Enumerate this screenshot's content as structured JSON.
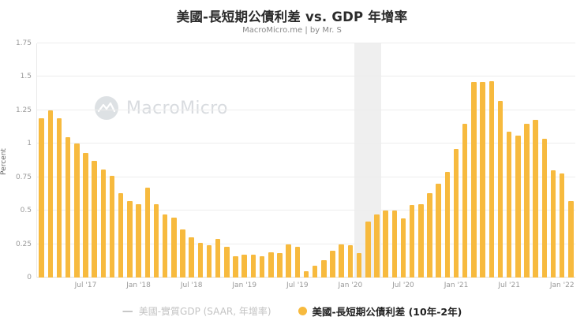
{
  "chart": {
    "title": "美國-長短期公債利差 vs. GDP 年增率",
    "subtitle": "MacroMicro.me | by Mr. S",
    "ylabel": "Percent",
    "watermark": "MacroMicro"
  },
  "legend": {
    "gdp_marker": "—",
    "gdp_label": "美國-實質GDP (SAAR, 年增率)",
    "spread_label": "美國-長短期公債利差 (10年-2年)"
  },
  "chart_data": {
    "type": "bar",
    "title": "美國-長短期公債利差 vs. GDP 年增率",
    "subtitle": "MacroMicro.me | by Mr. S",
    "xlabel": "",
    "ylabel": "Percent",
    "ylim": [
      0,
      1.75
    ],
    "y_ticks": [
      0,
      0.25,
      0.5,
      0.75,
      1,
      1.25,
      1.5,
      1.75
    ],
    "grid": true,
    "legend_position": "bottom",
    "bar_color": "#f7ba3e",
    "x": [
      "2017-02",
      "2017-03",
      "2017-04",
      "2017-05",
      "2017-06",
      "2017-07",
      "2017-08",
      "2017-09",
      "2017-10",
      "2017-11",
      "2017-12",
      "2018-01",
      "2018-02",
      "2018-03",
      "2018-04",
      "2018-05",
      "2018-06",
      "2018-07",
      "2018-08",
      "2018-09",
      "2018-10",
      "2018-11",
      "2018-12",
      "2019-01",
      "2019-02",
      "2019-03",
      "2019-04",
      "2019-05",
      "2019-06",
      "2019-07",
      "2019-08",
      "2019-09",
      "2019-10",
      "2019-11",
      "2019-12",
      "2020-01",
      "2020-02",
      "2020-03",
      "2020-04",
      "2020-05",
      "2020-06",
      "2020-07",
      "2020-08",
      "2020-09",
      "2020-10",
      "2020-11",
      "2020-12",
      "2021-01",
      "2021-02",
      "2021-03",
      "2021-04",
      "2021-05",
      "2021-06",
      "2021-07",
      "2021-08",
      "2021-09",
      "2021-10",
      "2021-11",
      "2021-12",
      "2022-01",
      "2022-02"
    ],
    "values": [
      1.19,
      1.25,
      1.19,
      1.05,
      1.0,
      0.93,
      0.87,
      0.81,
      0.76,
      0.63,
      0.57,
      0.55,
      0.67,
      0.55,
      0.47,
      0.45,
      0.36,
      0.3,
      0.26,
      0.24,
      0.29,
      0.23,
      0.16,
      0.17,
      0.17,
      0.16,
      0.19,
      0.18,
      0.25,
      0.23,
      0.05,
      0.09,
      0.13,
      0.2,
      0.25,
      0.24,
      0.18,
      0.42,
      0.47,
      0.5,
      0.5,
      0.44,
      0.54,
      0.55,
      0.63,
      0.7,
      0.79,
      0.96,
      1.15,
      1.46,
      1.46,
      1.47,
      1.32,
      1.09,
      1.06,
      1.15,
      1.18,
      1.04,
      0.8,
      0.78,
      0.57
    ],
    "x_ticks": [
      {
        "label": "Jul '17",
        "index": 5
      },
      {
        "label": "Jan '18",
        "index": 11
      },
      {
        "label": "Jul '18",
        "index": 17
      },
      {
        "label": "Jan '19",
        "index": 23
      },
      {
        "label": "Jul '19",
        "index": 29
      },
      {
        "label": "Jan '20",
        "index": 35
      },
      {
        "label": "Jul '20",
        "index": 41
      },
      {
        "label": "Jan '21",
        "index": 47
      },
      {
        "label": "Jul '21",
        "index": 53
      },
      {
        "label": "Jan '22",
        "index": 59
      }
    ],
    "recession_band": {
      "start_index": 36,
      "end_index": 39
    },
    "series_legend": [
      {
        "name": "美國-實質GDP (SAAR, 年增率)",
        "type": "line",
        "visible": false,
        "color": "#c3c3c3"
      },
      {
        "name": "美國-長短期公債利差 (10年-2年)",
        "type": "bar",
        "visible": true,
        "color": "#f7ba3e"
      }
    ]
  }
}
